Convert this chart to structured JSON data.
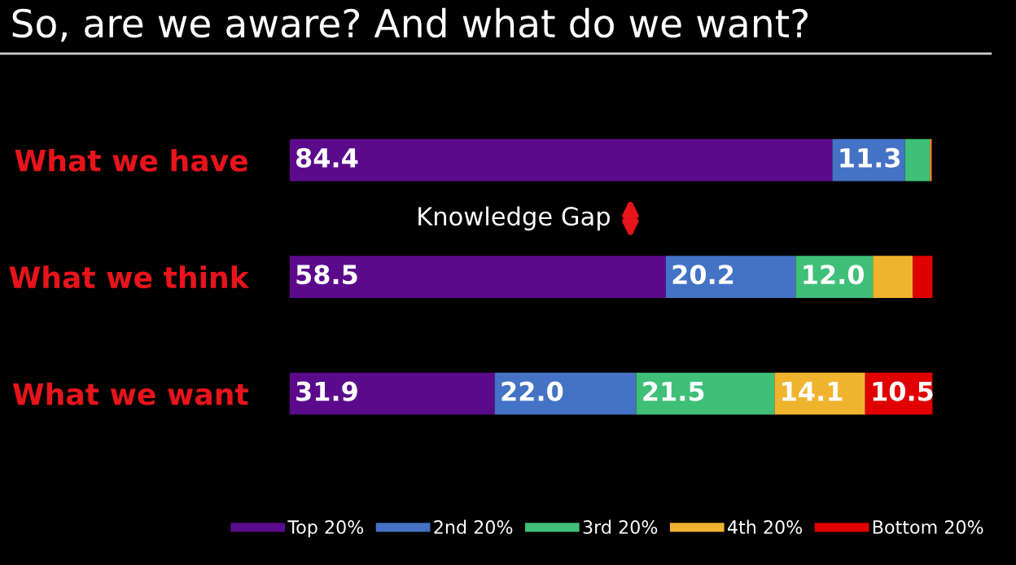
{
  "chart_data": {
    "type": "bar",
    "orientation": "horizontal",
    "stacked": true,
    "title": "So, are we aware? And what do we want?",
    "categories": [
      "What we have",
      "What we think",
      "What we want"
    ],
    "series": [
      {
        "name": "Top 20%",
        "color": "#5c0a8c",
        "values": [
          84.4,
          58.5,
          31.9
        ],
        "value_labels": [
          "84.4",
          "58.5",
          "31.9"
        ]
      },
      {
        "name": "2nd 20%",
        "color": "#4472c4",
        "values": [
          11.3,
          20.2,
          22.0
        ],
        "value_labels": [
          "11.3",
          "20.2",
          "22.0"
        ]
      },
      {
        "name": "3rd 20%",
        "color": "#3fbf77",
        "values": [
          3.9,
          12.0,
          21.5
        ],
        "value_labels": [
          null,
          "12.0",
          "21.5"
        ]
      },
      {
        "name": "4th 20%",
        "color": "#f0b32e",
        "values": [
          0.2,
          6.2,
          14.1
        ],
        "value_labels": [
          null,
          null,
          "14.1"
        ]
      },
      {
        "name": "Bottom 20%",
        "color": "#e00000",
        "values": [
          0.1,
          3.1,
          10.5
        ],
        "value_labels": [
          null,
          null,
          "10.5"
        ]
      }
    ],
    "annotations": [
      "Knowledge Gap"
    ],
    "legend": "bottom",
    "grid": false
  }
}
